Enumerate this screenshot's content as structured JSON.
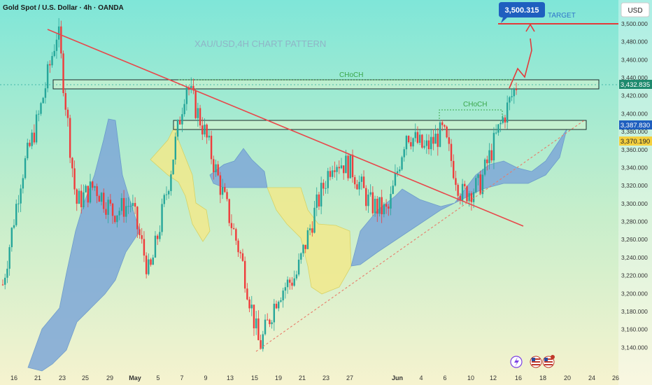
{
  "header": {
    "symbol_info": "Gold Spot / U.S. Dollar · 4h · OANDA",
    "currency_button": "USD"
  },
  "watermark": "XAU/USD,4H CHART PATTERN",
  "annotations": {
    "choch_upper": "CHoCH",
    "choch_lower": "CHoCH",
    "target_label": "TARGET",
    "target_price": "3,500.315"
  },
  "price_badges": {
    "upper_zone": "3,432.835",
    "lower_zone": "3,387.830",
    "current": "3,370.190"
  },
  "colors": {
    "background_top": "#7fe6d8",
    "background_bottom": "#f5f2d0",
    "bull": "#26a69a",
    "bear": "#ef3b3b",
    "trendline": "#e8474a",
    "target_line": "#e33a3a",
    "support_dotted": "#e87c6a",
    "cloud_blue": "#7ea8d8",
    "cloud_yellow": "#f2ea8c",
    "zone_border": "#1c2b2b",
    "badge_green": "#1e8a6e",
    "badge_blue": "#1f5fbf",
    "badge_yellow": "#f4d03f",
    "choch_text": "#3aa64a",
    "target_text": "#2f74c9"
  },
  "event_icons": [
    "lightning-icon",
    "us-flag-icon",
    "us-flag-icon"
  ],
  "chart_data": {
    "type": "candlestick",
    "title": "XAU/USD,4H CHART PATTERN",
    "ylim": [
      3120,
      3520
    ],
    "y_ticks": [
      3140,
      3160,
      3180,
      3200,
      3220,
      3240,
      3260,
      3280,
      3300,
      3320,
      3340,
      3360,
      3380,
      3400,
      3420,
      3440,
      3460,
      3480,
      3500
    ],
    "x_ticks": [
      "16",
      "21",
      "23",
      "25",
      "29",
      "May",
      "5",
      "7",
      "9",
      "13",
      "15",
      "19",
      "21",
      "23",
      "27",
      "Jun",
      "4",
      "6",
      "10",
      "12",
      "16",
      "18",
      "20",
      "24",
      "26"
    ],
    "price_path": [
      {
        "date": "Apr 16",
        "price": 3210
      },
      {
        "date": "Apr 18",
        "price": 3330
      },
      {
        "date": "Apr 21",
        "price": 3400
      },
      {
        "date": "Apr 22",
        "price": 3495
      },
      {
        "date": "Apr 23",
        "price": 3300
      },
      {
        "date": "Apr 25",
        "price": 3320
      },
      {
        "date": "Apr 28",
        "price": 3290
      },
      {
        "date": "Apr 30",
        "price": 3300
      },
      {
        "date": "May 1",
        "price": 3220
      },
      {
        "date": "May 5",
        "price": 3320
      },
      {
        "date": "May 7",
        "price": 3435
      },
      {
        "date": "May 8",
        "price": 3380
      },
      {
        "date": "May 9",
        "price": 3310
      },
      {
        "date": "May 13",
        "price": 3240
      },
      {
        "date": "May 15",
        "price": 3140
      },
      {
        "date": "May 16",
        "price": 3200
      },
      {
        "date": "May 19",
        "price": 3220
      },
      {
        "date": "May 21",
        "price": 3290
      },
      {
        "date": "May 23",
        "price": 3350
      },
      {
        "date": "May 26",
        "price": 3340
      },
      {
        "date": "May 28",
        "price": 3300
      },
      {
        "date": "May 30",
        "price": 3290
      },
      {
        "date": "Jun 2",
        "price": 3380
      },
      {
        "date": "Jun 4",
        "price": 3360
      },
      {
        "date": "Jun 6",
        "price": 3380
      },
      {
        "date": "Jun 9",
        "price": 3310
      },
      {
        "date": "Jun 10",
        "price": 3320
      },
      {
        "date": "Jun 12",
        "price": 3380
      },
      {
        "date": "Jun 13",
        "price": 3432
      }
    ],
    "zones": [
      {
        "label": "CHoCH",
        "price": 3432.835
      },
      {
        "label": "CHoCH",
        "price": 3387.83
      }
    ],
    "target": 3500.315,
    "current_price": 3370.19
  }
}
